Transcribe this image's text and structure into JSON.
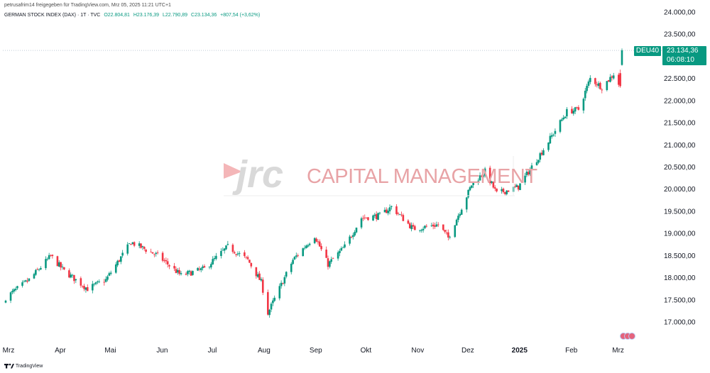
{
  "header": {
    "published_line": "petrusafrim14 freigegeben für TradingView.com, Mrz 05, 2025 11:21 UTC+1",
    "instrument": "GERMAN STOCK INDEX (DAX) · 1T · TVC",
    "ohlc": {
      "open": "O22.804,81",
      "high": "H23.176,39",
      "low": "L22.790,89",
      "close": "C23.134,36",
      "change": "+807,54 (+3,62%)"
    }
  },
  "watermark": {
    "logo": "jrc",
    "text": "CAPITAL MANAGEMENT"
  },
  "price_label": {
    "symbol": "DEU40",
    "price": "23.134,36",
    "countdown": "06:08:10"
  },
  "footer": {
    "brand": "TradingView"
  },
  "colors": {
    "up": "#089981",
    "down": "#f23645",
    "grid": "#f0f3fa",
    "axis_text": "#131722",
    "watermark_accent": "#f4b6b8",
    "watermark_logo": "#dcdcdc"
  },
  "icons": {
    "events": "event-markers-icon",
    "brand": "tradingview-logo-icon"
  },
  "chart_data": {
    "type": "candlestick",
    "title": "GERMAN STOCK INDEX (DAX) · 1T · TVC",
    "x_axis_labels": [
      "Mrz",
      "Apr",
      "Mai",
      "Jun",
      "Jul",
      "Aug",
      "Sep",
      "Okt",
      "Nov",
      "Dez",
      "2025",
      "Feb",
      "Mrz"
    ],
    "y_axis_labels": [
      "24.000,00",
      "23.500,00",
      "23.000,00",
      "22.500,00",
      "22.000,00",
      "21.500,00",
      "21.000,00",
      "20.500,00",
      "20.000,00",
      "19.500,00",
      "19.000,00",
      "18.500,00",
      "18.000,00",
      "17.500,00",
      "17.000,00"
    ],
    "y_range": [
      16800,
      24100
    ],
    "axis_side": "right",
    "grid": false,
    "last_close": 23134.36,
    "close_path": [
      [
        "2024-03-01",
        17550
      ],
      [
        "2024-03-15",
        17950
      ],
      [
        "2024-03-28",
        18490
      ],
      [
        "2024-04-05",
        18150
      ],
      [
        "2024-04-19",
        17750
      ],
      [
        "2024-04-30",
        17950
      ],
      [
        "2024-05-15",
        18800
      ],
      [
        "2024-05-31",
        18500
      ],
      [
        "2024-06-14",
        18050
      ],
      [
        "2024-06-28",
        18200
      ],
      [
        "2024-07-12",
        18700
      ],
      [
        "2024-07-24",
        18400
      ],
      [
        "2024-08-01",
        17900
      ],
      [
        "2024-08-05",
        17200
      ],
      [
        "2024-08-20",
        18400
      ],
      [
        "2024-09-02",
        18950
      ],
      [
        "2024-09-10",
        18300
      ],
      [
        "2024-09-20",
        18700
      ],
      [
        "2024-09-30",
        19350
      ],
      [
        "2024-10-11",
        19400
      ],
      [
        "2024-10-18",
        19600
      ],
      [
        "2024-10-31",
        19100
      ],
      [
        "2024-11-15",
        19200
      ],
      [
        "2024-11-21",
        18900
      ],
      [
        "2024-12-05",
        20100
      ],
      [
        "2024-12-13",
        20400
      ],
      [
        "2024-12-20",
        19900
      ],
      [
        "2025-01-02",
        20050
      ],
      [
        "2025-01-17",
        20900
      ],
      [
        "2025-01-31",
        21750
      ],
      [
        "2025-02-07",
        21800
      ],
      [
        "2025-02-14",
        22500
      ],
      [
        "2025-02-21",
        22300
      ],
      [
        "2025-02-28",
        22600
      ],
      [
        "2025-03-04",
        22300
      ],
      [
        "2025-03-05",
        23134
      ]
    ]
  }
}
